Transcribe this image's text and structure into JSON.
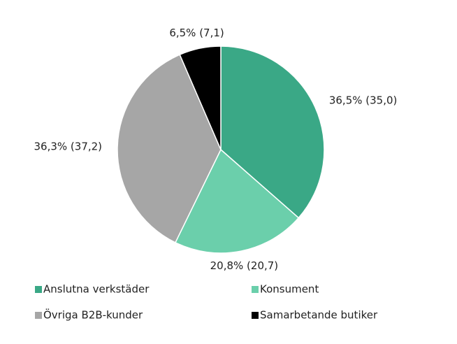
{
  "chart_data": {
    "type": "pie",
    "categories": [
      "Anslutna verkstäder",
      "Konsument",
      "Övriga B2B-kunder",
      "Samarbetande butiker"
    ],
    "values": [
      36.5,
      20.8,
      36.3,
      6.5
    ],
    "value_labels": [
      "36,5% (35,0)",
      "20,8% (20,7)",
      "36,3% (37,2)",
      "6,5% (7,1)"
    ],
    "colors": [
      "#3aa886",
      "#6bcfab",
      "#a6a6a6",
      "#000000"
    ]
  }
}
